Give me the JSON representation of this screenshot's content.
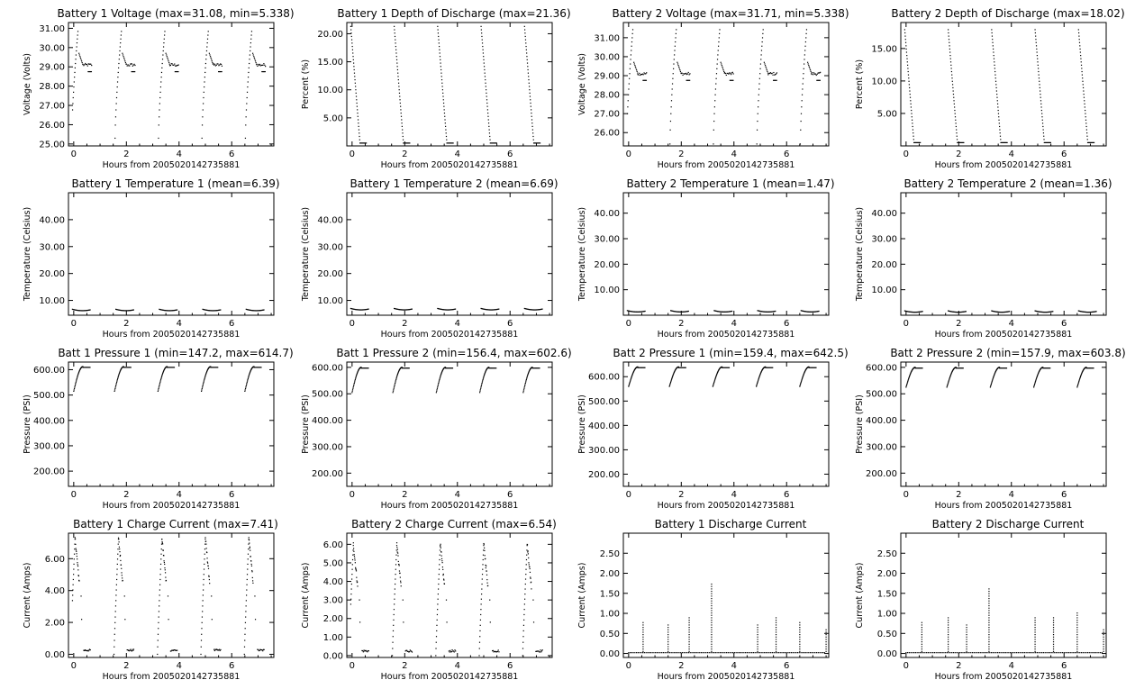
{
  "image_id_note": "",
  "chart_data": [
    {
      "type": "scatter",
      "title": "Battery 1 Voltage (max=31.08, min=5.338)",
      "xlabel": "Hours from 2005020142735881",
      "ylabel": "Voltage (Volts)",
      "xlim": [
        -0.2,
        7.6
      ],
      "ylim": [
        24.9,
        31.3
      ],
      "xticks": [
        "0",
        "2",
        "4",
        "6"
      ],
      "yticks": [
        "25.00",
        "26.00",
        "27.00",
        "28.00",
        "29.00",
        "30.00",
        "31.00"
      ],
      "pattern": "voltage",
      "params": {
        "low": 25.3,
        "peak": 31.0,
        "plateau": 29.1
      }
    },
    {
      "type": "scatter",
      "title": "Battery 1 Depth of Discharge (max=21.36)",
      "xlabel": "Hours from 2005020142735881",
      "ylabel": "Percent (%)",
      "xlim": [
        -0.2,
        7.6
      ],
      "ylim": [
        0,
        22
      ],
      "xticks": [
        "0",
        "2",
        "4",
        "6"
      ],
      "yticks": [
        "5.00",
        "10.00",
        "15.00",
        "20.00"
      ],
      "pattern": "dod",
      "params": {
        "peak": 21.3,
        "floor": 0.5
      }
    },
    {
      "type": "scatter",
      "title": "Battery 2 Voltage (max=31.71, min=5.338)",
      "xlabel": "Hours from 2005020142735881",
      "ylabel": "Voltage (Volts)",
      "xlim": [
        -0.2,
        7.6
      ],
      "ylim": [
        25.3,
        31.8
      ],
      "xticks": [
        "0",
        "2",
        "4",
        "6"
      ],
      "yticks": [
        "26.00",
        "27.00",
        "28.00",
        "29.00",
        "30.00",
        "31.00"
      ],
      "pattern": "voltage",
      "params": {
        "low": 25.4,
        "peak": 31.6,
        "plateau": 29.1
      }
    },
    {
      "type": "scatter",
      "title": "Battery 2 Depth of Discharge (max=18.02)",
      "xlabel": "Hours from 2005020142735881",
      "ylabel": "Percent (%)",
      "xlim": [
        -0.2,
        7.6
      ],
      "ylim": [
        0,
        19
      ],
      "xticks": [
        "0",
        "2",
        "4",
        "6"
      ],
      "yticks": [
        "5.00",
        "10.00",
        "15.00"
      ],
      "pattern": "dod",
      "params": {
        "peak": 17.9,
        "floor": 0.5
      }
    },
    {
      "type": "scatter",
      "title": "Battery 1 Temperature 1 (mean=6.39)",
      "xlabel": "Hours from 2005020142735881",
      "ylabel": "Temperature (Celsius)",
      "xlim": [
        -0.2,
        7.6
      ],
      "ylim": [
        4.5,
        50
      ],
      "xticks": [
        "0",
        "2",
        "4",
        "6"
      ],
      "yticks": [
        "10.00",
        "20.00",
        "30.00",
        "40.00"
      ],
      "pattern": "temp",
      "params": {
        "base": 6.4,
        "amp": 0.7
      }
    },
    {
      "type": "scatter",
      "title": "Battery 1 Temperature 2 (mean=6.69)",
      "xlabel": "Hours from 2005020142735881",
      "ylabel": "Temperature (Celsius)",
      "xlim": [
        -0.2,
        7.6
      ],
      "ylim": [
        4.5,
        50
      ],
      "xticks": [
        "0",
        "2",
        "4",
        "6"
      ],
      "yticks": [
        "10.00",
        "20.00",
        "30.00",
        "40.00"
      ],
      "pattern": "temp",
      "params": {
        "base": 6.7,
        "amp": 0.7
      }
    },
    {
      "type": "scatter",
      "title": "Battery 2 Temperature 1 (mean=1.47)",
      "xlabel": "Hours from 2005020142735881",
      "ylabel": "Temperature (Celsius)",
      "xlim": [
        -0.2,
        7.6
      ],
      "ylim": [
        0,
        48
      ],
      "xticks": [
        "0",
        "2",
        "4",
        "6"
      ],
      "yticks": [
        "10.00",
        "20.00",
        "30.00",
        "40.00"
      ],
      "pattern": "temp",
      "params": {
        "base": 1.5,
        "amp": 0.7
      }
    },
    {
      "type": "scatter",
      "title": "Battery 2 Temperature 2 (mean=1.36)",
      "xlabel": "Hours from 2005020142735881",
      "ylabel": "Temperature (Celsius)",
      "xlim": [
        -0.2,
        7.6
      ],
      "ylim": [
        0,
        48
      ],
      "xticks": [
        "0",
        "2",
        "4",
        "6"
      ],
      "yticks": [
        "10.00",
        "20.00",
        "30.00",
        "40.00"
      ],
      "pattern": "temp",
      "params": {
        "base": 1.4,
        "amp": 0.7
      }
    },
    {
      "type": "scatter",
      "title": "Batt 1 Pressure 1 (min=147.2, max=614.7)",
      "xlabel": "Hours from 2005020142735881",
      "ylabel": "Pressure (PSI)",
      "xlim": [
        -0.2,
        7.6
      ],
      "ylim": [
        140,
        630
      ],
      "xticks": [
        "0",
        "2",
        "4",
        "6"
      ],
      "yticks": [
        "200.00",
        "300.00",
        "400.00",
        "500.00",
        "600.00"
      ],
      "pattern": "pressure",
      "params": {
        "low": 515,
        "high": 612
      }
    },
    {
      "type": "scatter",
      "title": "Batt 1 Pressure 2 (min=156.4, max=602.6)",
      "xlabel": "Hours from 2005020142735881",
      "ylabel": "Pressure (PSI)",
      "xlim": [
        -0.2,
        7.6
      ],
      "ylim": [
        150,
        620
      ],
      "xticks": [
        "0",
        "2",
        "4",
        "6"
      ],
      "yticks": [
        "200.00",
        "300.00",
        "400.00",
        "500.00",
        "600.00"
      ],
      "pattern": "pressure",
      "params": {
        "low": 505,
        "high": 600
      }
    },
    {
      "type": "scatter",
      "title": "Batt 2 Pressure 1 (min=159.4, max=642.5)",
      "xlabel": "Hours from 2005020142735881",
      "ylabel": "Pressure (PSI)",
      "xlim": [
        -0.2,
        7.6
      ],
      "ylim": [
        150,
        660
      ],
      "xticks": [
        "0",
        "2",
        "4",
        "6"
      ],
      "yticks": [
        "200.00",
        "300.00",
        "400.00",
        "500.00",
        "600.00"
      ],
      "pattern": "pressure",
      "params": {
        "low": 560,
        "high": 640
      }
    },
    {
      "type": "scatter",
      "title": "Batt 2 Pressure 2 (min=157.9, max=603.8)",
      "xlabel": "Hours from 2005020142735881",
      "ylabel": "Pressure (PSI)",
      "xlim": [
        -0.2,
        7.6
      ],
      "ylim": [
        150,
        620
      ],
      "xticks": [
        "0",
        "2",
        "4",
        "6"
      ],
      "yticks": [
        "200.00",
        "300.00",
        "400.00",
        "500.00",
        "600.00"
      ],
      "pattern": "pressure",
      "params": {
        "low": 525,
        "high": 600
      }
    },
    {
      "type": "scatter",
      "title": "Battery 1 Charge Current (max=7.41)",
      "xlabel": "Hours from 2005020142735881",
      "ylabel": "Current (Amps)",
      "xlim": [
        -0.2,
        7.6
      ],
      "ylim": [
        -0.2,
        7.6
      ],
      "xticks": [
        "0",
        "2",
        "4",
        "6"
      ],
      "yticks": [
        "0.00",
        "2.00",
        "4.00",
        "6.00"
      ],
      "pattern": "charge",
      "params": {
        "peak": 7.3
      }
    },
    {
      "type": "scatter",
      "title": "Battery 2 Charge Current (max=6.54)",
      "xlabel": "Hours from 2005020142735881",
      "ylabel": "Current (Amps)",
      "xlim": [
        -0.2,
        7.6
      ],
      "ylim": [
        -0.1,
        6.6
      ],
      "xticks": [
        "0",
        "2",
        "4",
        "6"
      ],
      "yticks": [
        "0.00",
        "1.00",
        "2.00",
        "3.00",
        "4.00",
        "5.00",
        "6.00"
      ],
      "pattern": "charge",
      "params": {
        "peak": 6.0
      }
    },
    {
      "type": "scatter",
      "title": "Battery 1 Discharge Current",
      "xlabel": "Hours from 2005020142735881",
      "ylabel": "Current (Amps)",
      "xlim": [
        -0.2,
        7.6
      ],
      "ylim": [
        -0.1,
        3.0
      ],
      "xticks": [
        "0",
        "2",
        "4",
        "6"
      ],
      "yticks": [
        "0.00",
        "0.50",
        "1.00",
        "1.50",
        "2.00",
        "2.50"
      ],
      "pattern": "discharge",
      "params": {
        "spikes": [
          [
            0.55,
            0.8
          ],
          [
            1.5,
            0.75
          ],
          [
            2.3,
            0.9
          ],
          [
            3.15,
            1.75
          ],
          [
            4.9,
            0.75
          ],
          [
            5.6,
            0.95
          ],
          [
            6.5,
            0.8
          ],
          [
            7.5,
            0.6
          ]
        ]
      }
    },
    {
      "type": "scatter",
      "title": "Battery 2 Discharge Current",
      "xlabel": "Hours from 2005020142735881",
      "ylabel": "Current (Amps)",
      "xlim": [
        -0.2,
        7.6
      ],
      "ylim": [
        -0.1,
        3.0
      ],
      "xticks": [
        "0",
        "2",
        "4",
        "6"
      ],
      "yticks": [
        "0.00",
        "0.50",
        "1.00",
        "1.50",
        "2.00",
        "2.50"
      ],
      "pattern": "discharge",
      "params": {
        "spikes": [
          [
            0.6,
            0.8
          ],
          [
            1.6,
            0.9
          ],
          [
            2.3,
            0.75
          ],
          [
            3.15,
            1.65
          ],
          [
            4.9,
            0.9
          ],
          [
            5.6,
            0.9
          ],
          [
            6.5,
            1.05
          ],
          [
            7.5,
            0.6
          ]
        ]
      }
    }
  ],
  "cycles": [
    0.0,
    1.65,
    3.3,
    4.95,
    6.6
  ],
  "colors": {
    "ink": "#000000",
    "background": "#ffffff"
  }
}
